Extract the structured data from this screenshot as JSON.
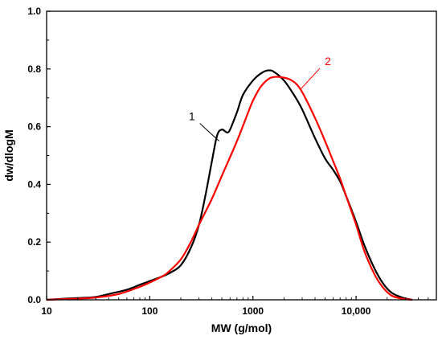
{
  "chart_data": {
    "type": "line",
    "title": "",
    "xlabel": "MW (g/mol)",
    "ylabel": "dw/dlogM",
    "x_scale": "log",
    "xlim": [
      10,
      60000
    ],
    "ylim": [
      0,
      1.0
    ],
    "x_ticks": [
      10,
      100,
      1000,
      10000
    ],
    "x_tick_labels": [
      "10",
      "100",
      "1000",
      "10,000"
    ],
    "y_ticks": [
      0.0,
      0.2,
      0.4,
      0.6,
      0.8,
      1.0
    ],
    "y_tick_labels": [
      "0.0",
      "0.2",
      "0.4",
      "0.6",
      "0.8",
      "1.0"
    ],
    "grid": false,
    "legend": "none",
    "series": [
      {
        "color": "#000000",
        "points": [
          [
            10,
            0.0
          ],
          [
            15,
            0.004
          ],
          [
            20,
            0.006
          ],
          [
            30,
            0.01
          ],
          [
            40,
            0.02
          ],
          [
            60,
            0.035
          ],
          [
            80,
            0.052
          ],
          [
            100,
            0.065
          ],
          [
            130,
            0.08
          ],
          [
            160,
            0.095
          ],
          [
            200,
            0.12
          ],
          [
            250,
            0.18
          ],
          [
            300,
            0.26
          ],
          [
            350,
            0.37
          ],
          [
            400,
            0.48
          ],
          [
            450,
            0.57
          ],
          [
            500,
            0.59
          ],
          [
            560,
            0.58
          ],
          [
            600,
            0.59
          ],
          [
            700,
            0.65
          ],
          [
            800,
            0.71
          ],
          [
            1000,
            0.76
          ],
          [
            1200,
            0.785
          ],
          [
            1400,
            0.795
          ],
          [
            1600,
            0.79
          ],
          [
            2000,
            0.76
          ],
          [
            2500,
            0.71
          ],
          [
            3000,
            0.66
          ],
          [
            4000,
            0.56
          ],
          [
            5000,
            0.49
          ],
          [
            6000,
            0.45
          ],
          [
            7000,
            0.41
          ],
          [
            8000,
            0.36
          ],
          [
            10000,
            0.27
          ],
          [
            12000,
            0.19
          ],
          [
            15000,
            0.11
          ],
          [
            18000,
            0.06
          ],
          [
            22000,
            0.025
          ],
          [
            28000,
            0.008
          ],
          [
            35000,
            0.0
          ]
        ]
      },
      {
        "color": "#ff0000",
        "points": [
          [
            10,
            0.0
          ],
          [
            20,
            0.004
          ],
          [
            30,
            0.008
          ],
          [
            50,
            0.02
          ],
          [
            80,
            0.045
          ],
          [
            100,
            0.06
          ],
          [
            130,
            0.08
          ],
          [
            150,
            0.095
          ],
          [
            200,
            0.14
          ],
          [
            250,
            0.2
          ],
          [
            300,
            0.26
          ],
          [
            400,
            0.35
          ],
          [
            500,
            0.43
          ],
          [
            700,
            0.55
          ],
          [
            900,
            0.65
          ],
          [
            1000,
            0.69
          ],
          [
            1200,
            0.74
          ],
          [
            1500,
            0.77
          ],
          [
            2000,
            0.77
          ],
          [
            2500,
            0.755
          ],
          [
            3000,
            0.72
          ],
          [
            4000,
            0.63
          ],
          [
            5000,
            0.55
          ],
          [
            6000,
            0.48
          ],
          [
            7000,
            0.42
          ],
          [
            8000,
            0.36
          ],
          [
            10000,
            0.26
          ],
          [
            12000,
            0.17
          ],
          [
            15000,
            0.09
          ],
          [
            18000,
            0.045
          ],
          [
            22000,
            0.015
          ],
          [
            28000,
            0.004
          ],
          [
            35000,
            0.0
          ]
        ]
      }
    ],
    "annotations": [
      {
        "text": "1",
        "color": "#000000",
        "points_to": [
          470,
          0.55
        ]
      },
      {
        "text": "2",
        "color": "#ff0000",
        "points_to": [
          2900,
          0.73
        ]
      }
    ]
  }
}
